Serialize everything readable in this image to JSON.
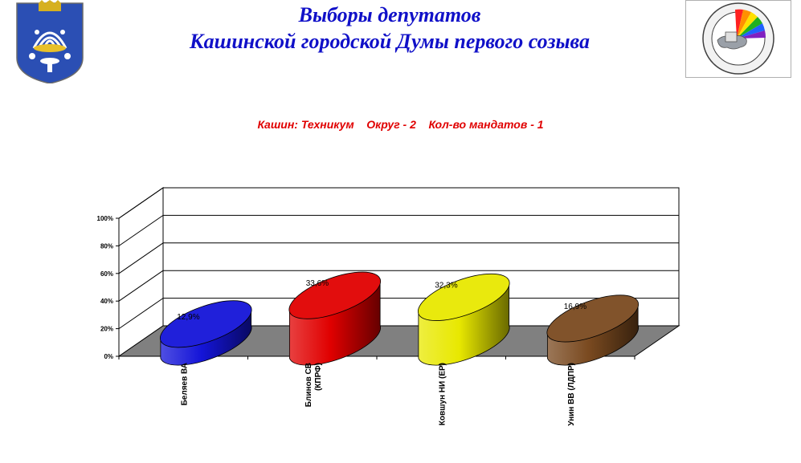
{
  "header": {
    "title_line1": "Выборы депутатов",
    "title_line2": "Кашинской городской Думы первого созыва"
  },
  "subtitle": "Кашин: Техникум    Округ - 2    Кол-во мандатов - 1",
  "logos": {
    "left_icon": "kashin-coat-of-arms-icon",
    "right_icon": "central-election-commission-emblem-icon",
    "right_emblem_text": "ЦЕНТРАЛЬНАЯ ИЗБИРАТЕЛЬНАЯ КОМИССИЯ РОССИЙСКАЯ ФЕДЕРАЦИЯ"
  },
  "chart_data": {
    "type": "bar",
    "style": "3d-cylinder",
    "categories": [
      "Беляев ВА",
      "Блинов СВ (КПРФ)",
      "Ковшун НИ (ЕР)",
      "Унин ВВ (ЛДПР)"
    ],
    "category_lines": [
      [
        "Беляев ВА"
      ],
      [
        "Блинов СВ",
        "(КПРФ)"
      ],
      [
        "Ковшун НИ (ЕР)"
      ],
      [
        "Унин ВВ (ЛДПР)"
      ]
    ],
    "values": [
      12.9,
      33.6,
      32.3,
      16.9
    ],
    "data_labels": [
      "12,9%",
      "33,6%",
      "32,3%",
      "16,9%"
    ],
    "colors": [
      "#1414d8",
      "#e00000",
      "#e8e800",
      "#7a4a20"
    ],
    "ylim": [
      0,
      100
    ],
    "yticks": [
      "0%",
      "20%",
      "40%",
      "60%",
      "80%",
      "100%"
    ],
    "floor_color": "#808080",
    "grid": true,
    "legend": "none"
  }
}
